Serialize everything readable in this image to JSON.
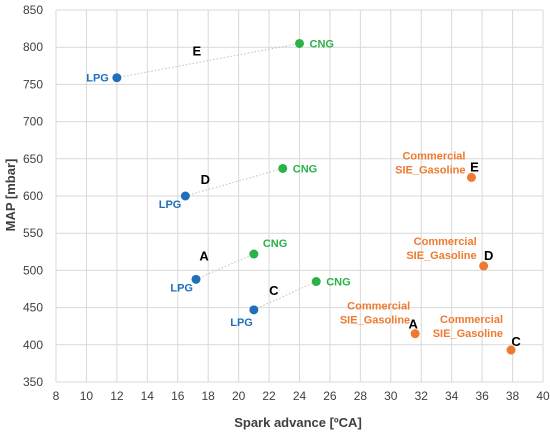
{
  "chart_data": {
    "type": "scatter",
    "xlabel": "Spark advance [ºCA]",
    "ylabel": "MAP [mbar]",
    "xlim": [
      8,
      40
    ],
    "ylim": [
      350,
      850
    ],
    "xticks": [
      8,
      10,
      12,
      14,
      16,
      18,
      20,
      22,
      24,
      26,
      28,
      30,
      32,
      34,
      36,
      38,
      40
    ],
    "yticks": [
      350,
      400,
      450,
      500,
      550,
      600,
      650,
      700,
      750,
      800,
      850
    ],
    "grid": true,
    "colors": {
      "LPG": "#1f6fba",
      "CNG": "#2ab14a",
      "Gasoline": "#ee7a30"
    },
    "points": [
      {
        "case": "E",
        "fuel": "LPG",
        "label": "LPG",
        "x": 12.0,
        "y": 759
      },
      {
        "case": "E",
        "fuel": "CNG",
        "label": "CNG",
        "x": 24.0,
        "y": 805
      },
      {
        "case": "D",
        "fuel": "LPG",
        "label": "LPG",
        "x": 16.5,
        "y": 600
      },
      {
        "case": "D",
        "fuel": "CNG",
        "label": "CNG",
        "x": 22.9,
        "y": 637
      },
      {
        "case": "A",
        "fuel": "LPG",
        "label": "LPG",
        "x": 17.2,
        "y": 488
      },
      {
        "case": "A",
        "fuel": "CNG",
        "label": "CNG",
        "x": 21.0,
        "y": 522
      },
      {
        "case": "C",
        "fuel": "LPG",
        "label": "LPG",
        "x": 21.0,
        "y": 447
      },
      {
        "case": "C",
        "fuel": "CNG",
        "label": "CNG",
        "x": 25.1,
        "y": 485
      },
      {
        "case": "E",
        "fuel": "Gasoline",
        "label": "Commercial\nSIE_Gasoline",
        "x": 35.3,
        "y": 625
      },
      {
        "case": "D",
        "fuel": "Gasoline",
        "label": "Commercial\nSIE_Gasoline",
        "x": 36.1,
        "y": 506
      },
      {
        "case": "A",
        "fuel": "Gasoline",
        "label": "Commercial\nSIE_Gasoline",
        "x": 31.6,
        "y": 415
      },
      {
        "case": "C",
        "fuel": "Gasoline",
        "label": "Commercial\nSIE_Gasoline",
        "x": 37.9,
        "y": 393
      }
    ],
    "links": [
      {
        "case": "E",
        "from": [
          12.0,
          759
        ],
        "to": [
          24.0,
          805
        ]
      },
      {
        "case": "D",
        "from": [
          16.5,
          600
        ],
        "to": [
          22.9,
          637
        ]
      },
      {
        "case": "A",
        "from": [
          17.2,
          488
        ],
        "to": [
          21.0,
          522
        ]
      },
      {
        "case": "C",
        "from": [
          21.0,
          447
        ],
        "to": [
          25.1,
          485
        ]
      }
    ]
  }
}
